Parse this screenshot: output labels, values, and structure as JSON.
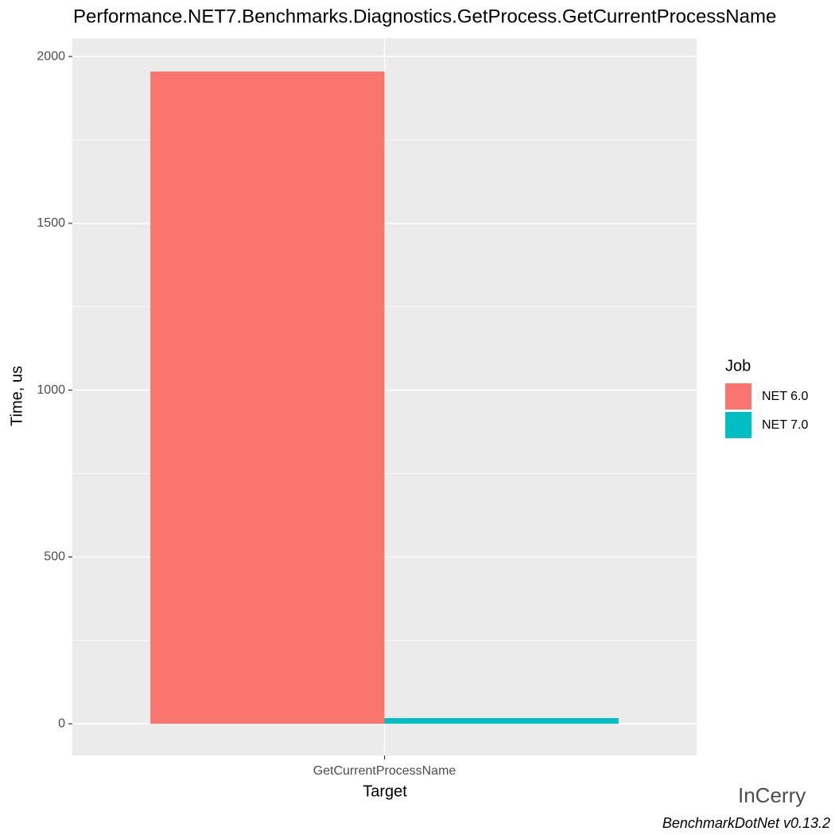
{
  "chart_data": {
    "type": "bar",
    "title": "Performance.NET7.Benchmarks.Diagnostics.GetProcess.GetCurrentProcessName",
    "x_label": "Target",
    "y_label": "Time, us",
    "categories": [
      "GetCurrentProcessName"
    ],
    "series": [
      {
        "name": "NET 6.0",
        "color": "#f8766d",
        "values": [
          1955
        ]
      },
      {
        "name": "NET 7.0",
        "color": "#00bfc4",
        "values": [
          17
        ]
      }
    ],
    "ylim": [
      -95,
      2055
    ],
    "yticks": [
      0,
      500,
      1000,
      1500,
      2000
    ],
    "grid": true,
    "legend_title": "Job",
    "legend_position": "right",
    "caption": "BenchmarkDotNet v0.13.2",
    "watermark": "InCerry"
  }
}
